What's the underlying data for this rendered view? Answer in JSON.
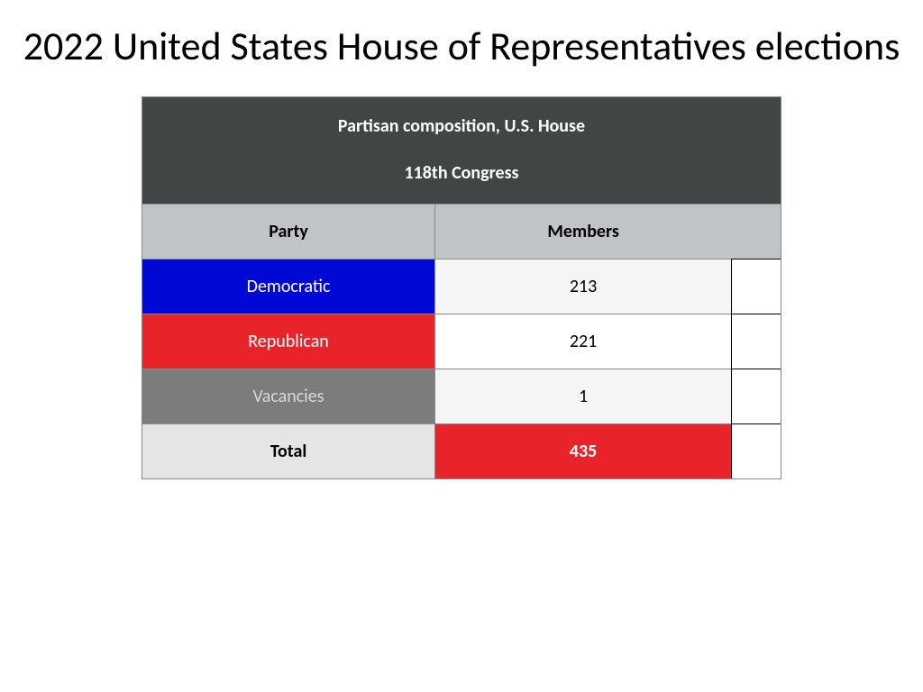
{
  "title": "2022 United States House of Representatives elections",
  "table": {
    "header_line1": "Partisan composition, U.S. House",
    "header_line2": "118th Congress",
    "columns": {
      "party": "Party",
      "members": "Members"
    },
    "rows": [
      {
        "party": "Democratic",
        "members": "213",
        "party_bg": "#0008d6",
        "party_text": "#ffffff",
        "members_bg": "#f5f5f5",
        "members_text": "#000000",
        "members_weight": "400"
      },
      {
        "party": "Republican",
        "members": "221",
        "party_bg": "#e8242a",
        "party_text": "#ffffff",
        "members_bg": "#ffffff",
        "members_text": "#000000",
        "members_weight": "400"
      },
      {
        "party": "Vacancies",
        "members": "1",
        "party_bg": "#7c7c7c",
        "party_text": "#d9d9d9",
        "members_bg": "#f5f5f5",
        "members_text": "#000000",
        "members_weight": "400"
      },
      {
        "party": "Total",
        "members": "435",
        "party_bg": "#e5e5e5",
        "party_text": "#000000",
        "party_weight": "700",
        "members_bg": "#e8242a",
        "members_text": "#ffffff",
        "members_weight": "700"
      }
    ]
  }
}
